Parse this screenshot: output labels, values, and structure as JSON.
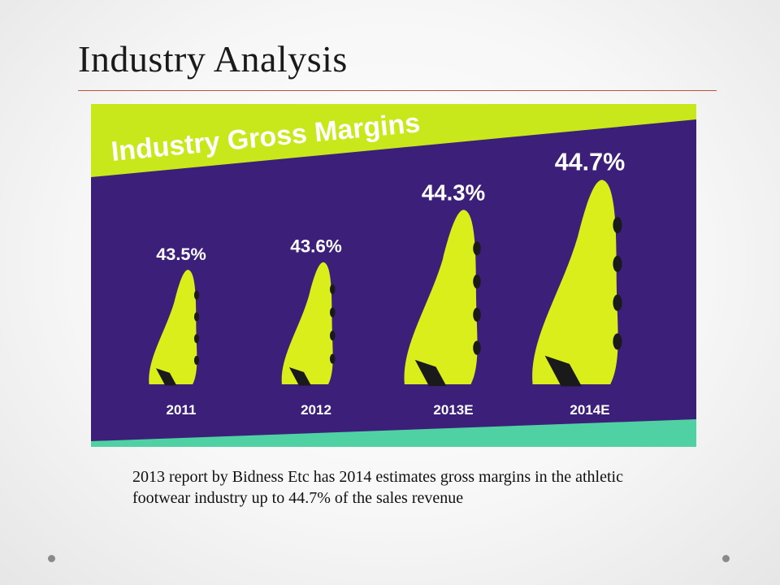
{
  "slide": {
    "title": "Industry Analysis",
    "caption": "2013 report by  Bidness Etc has 2014 estimates gross margins in the athletic footwear industry up to 44.7% of the sales revenue"
  },
  "chart_data": {
    "type": "bar",
    "title": "Industry Gross Margins",
    "categories": [
      "2011",
      "2012",
      "2013E",
      "2014E"
    ],
    "values": [
      43.5,
      43.6,
      44.3,
      44.7
    ],
    "value_labels": [
      "43.5%",
      "43.6%",
      "44.3%",
      "44.7%"
    ],
    "unit": "%",
    "mark": "football-cleat",
    "grid": false,
    "colors": {
      "background": "#3b1f78",
      "mark": "#d9ee1a",
      "banner": "#c9e81c",
      "floor": "#4fd1a4",
      "text": "#ffffff",
      "title_text": "#ffffff"
    }
  }
}
